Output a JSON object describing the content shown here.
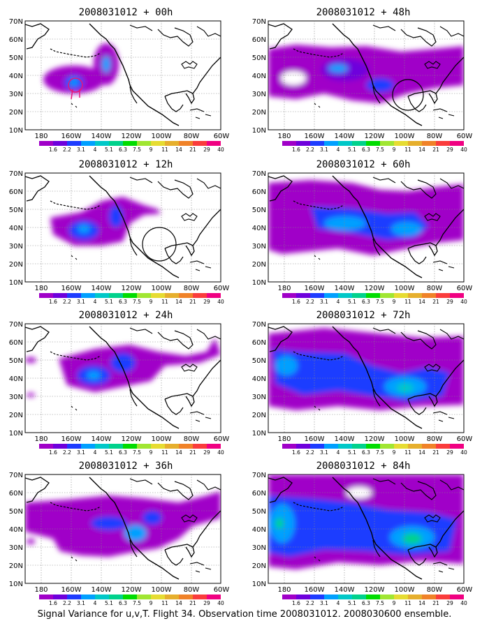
{
  "figure": {
    "footer_caption": "Signal Variance for u,v,T. Flight 34. Observation time 2008031012. 2008030600 ensemble."
  },
  "panels": [
    {
      "title": "2008031012 + 00h"
    },
    {
      "title": "2008031012 + 48h"
    },
    {
      "title": "2008031012 + 12h"
    },
    {
      "title": "2008031012 + 60h"
    },
    {
      "title": "2008031012 + 24h"
    },
    {
      "title": "2008031012 + 72h"
    },
    {
      "title": "2008031012 + 36h"
    },
    {
      "title": "2008031012 + 84h"
    }
  ],
  "axes": {
    "lat_ticks": [
      "10N",
      "20N",
      "30N",
      "40N",
      "50N",
      "60N",
      "70N"
    ],
    "lon_ticks": [
      "180",
      "160W",
      "140W",
      "120W",
      "100W",
      "80W",
      "60W"
    ],
    "lat_range": [
      10,
      70
    ],
    "lon_range": [
      -190,
      -60
    ],
    "gridlines": "dotted"
  },
  "colorbar": {
    "labels": [
      "1.6",
      "2.2",
      "3.1",
      "4",
      "5.1",
      "6.3",
      "7.5",
      "9",
      "11",
      "14",
      "21",
      "29",
      "40"
    ],
    "colors": [
      "#a000c8",
      "#6e00dc",
      "#1e3cff",
      "#00a0ff",
      "#00c8c8",
      "#00d28c",
      "#00dc00",
      "#a0e632",
      "#e6dc32",
      "#e6af2d",
      "#f08228",
      "#fa3c3c",
      "#f00082"
    ]
  },
  "map": {
    "land_outline": "black coastlines of North America and eastern Asia",
    "field_colors": {
      "level1": "#a000c8",
      "level2": "#6e00dc",
      "level3": "#1e3cff",
      "level4": "#00a0ff",
      "level5": "#00c8c8",
      "level6": "#00d28c",
      "level7": "#00dc00"
    }
  }
}
